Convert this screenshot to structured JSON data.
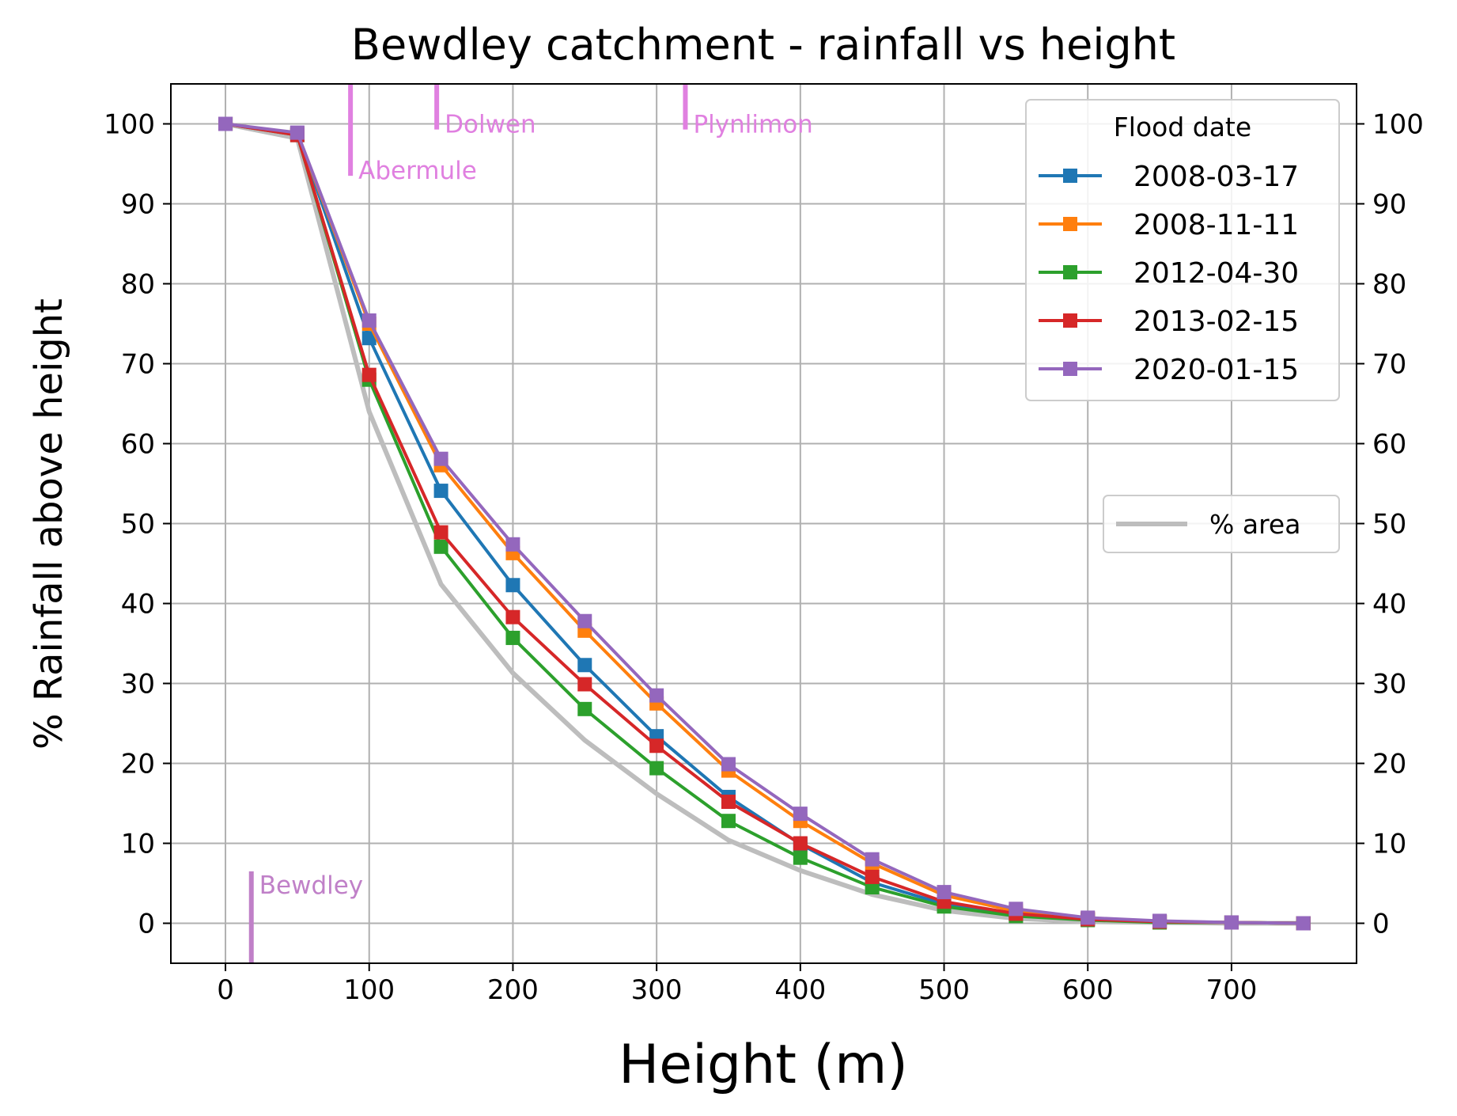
{
  "chart_data": {
    "type": "line",
    "title": "Bewdley catchment - rainfall vs height",
    "xlabel": "Height (m)",
    "ylabel": "% Rainfall above height",
    "xlim": [
      -38,
      787
    ],
    "ylim": [
      -5,
      105
    ],
    "x_ticks": [
      0,
      100,
      200,
      300,
      400,
      500,
      600,
      700
    ],
    "y_ticks": [
      0,
      10,
      20,
      30,
      40,
      50,
      60,
      70,
      80,
      90,
      100
    ],
    "grid": true,
    "right_axis": true,
    "x": [
      0,
      50,
      100,
      150,
      200,
      250,
      300,
      350,
      400,
      450,
      500,
      550,
      600,
      650,
      700,
      750
    ],
    "legend_title": "Flood date",
    "legend_position": "top-right",
    "series": [
      {
        "name": "2008-03-17",
        "color": "#1f77b4",
        "marker": "square",
        "values": [
          100,
          98.8,
          73.2,
          54.1,
          42.3,
          32.3,
          23.4,
          15.8,
          9.9,
          5.1,
          2.4,
          1.1,
          0.5,
          0.2,
          0.1,
          0
        ]
      },
      {
        "name": "2008-11-11",
        "color": "#ff7f0e",
        "marker": "square",
        "values": [
          100,
          98.8,
          75.0,
          57.3,
          46.3,
          36.6,
          27.5,
          19.1,
          12.8,
          7.5,
          3.5,
          1.5,
          0.6,
          0.2,
          0.1,
          0
        ]
      },
      {
        "name": "2012-04-30",
        "color": "#2ca02c",
        "marker": "square",
        "values": [
          100,
          98.6,
          68.0,
          47.1,
          35.7,
          26.8,
          19.4,
          12.8,
          8.2,
          4.5,
          2.1,
          0.9,
          0.4,
          0.1,
          0.1,
          0
        ]
      },
      {
        "name": "2013-02-15",
        "color": "#d62728",
        "marker": "square",
        "values": [
          100,
          98.6,
          68.6,
          48.9,
          38.3,
          29.9,
          22.2,
          15.2,
          10.0,
          5.8,
          2.7,
          1.2,
          0.5,
          0.2,
          0.1,
          0
        ]
      },
      {
        "name": "2020-01-15",
        "color": "#9467bd",
        "marker": "square",
        "values": [
          100,
          98.9,
          75.4,
          58.1,
          47.4,
          37.8,
          28.5,
          19.9,
          13.7,
          8.0,
          3.9,
          1.8,
          0.7,
          0.3,
          0.1,
          0
        ]
      }
    ],
    "area_series": {
      "name": "% area",
      "color": "#bdbdbd",
      "legend_position": "center-right",
      "values": [
        100,
        98.2,
        64.0,
        42.4,
        31.3,
        22.9,
        16.2,
        10.4,
        6.6,
        3.6,
        1.6,
        0.6,
        0.2,
        0.1,
        0,
        0
      ]
    },
    "annotations": [
      {
        "label": "Bewdley",
        "x": 18,
        "y_from": -5,
        "y_to": 6.5,
        "color": "#c080c8"
      },
      {
        "label": "Abermule",
        "x": 87,
        "y_from": 93.5,
        "y_to": 105,
        "color": "#e080e0"
      },
      {
        "label": "Dolwen",
        "x": 147,
        "y_from": 99.3,
        "y_to": 105,
        "color": "#e080e0"
      },
      {
        "label": "Plynlimon",
        "x": 320,
        "y_from": 99.3,
        "y_to": 105,
        "color": "#e080e0"
      }
    ]
  }
}
